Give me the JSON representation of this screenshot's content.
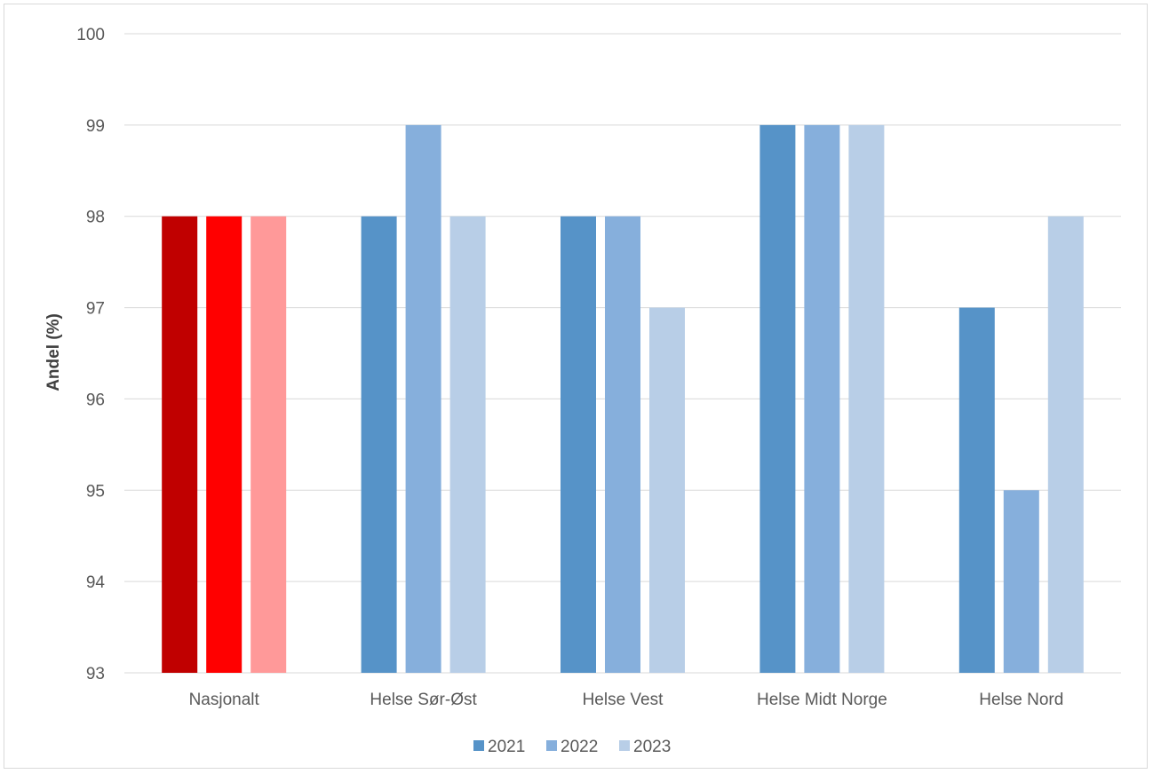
{
  "chart_data": {
    "type": "bar",
    "title": "",
    "xlabel": "",
    "ylabel": "Andel (%)",
    "ylim": [
      93,
      100
    ],
    "yticks": [
      93,
      94,
      95,
      96,
      97,
      98,
      99,
      100
    ],
    "grid": true,
    "legend_position": "bottom",
    "categories": [
      "Nasjonalt",
      "Helse Sør-Øst",
      "Helse Vest",
      "Helse Midt Norge",
      "Helse Nord"
    ],
    "series": [
      {
        "name": "2021",
        "values": [
          98,
          98,
          98,
          99,
          97
        ],
        "color": "#5693c8"
      },
      {
        "name": "2022",
        "values": [
          98,
          99,
          98,
          99,
          95
        ],
        "color": "#86afdc"
      },
      {
        "name": "2023",
        "values": [
          98,
          98,
          97,
          99,
          98
        ],
        "color": "#b8cee7"
      }
    ],
    "highlight": {
      "category": "Nasjonalt",
      "colors": [
        "#c00000",
        "#ff0000",
        "#ff9999"
      ]
    },
    "colors": {
      "grid": "#d9d9d9",
      "text": "#595959"
    }
  }
}
